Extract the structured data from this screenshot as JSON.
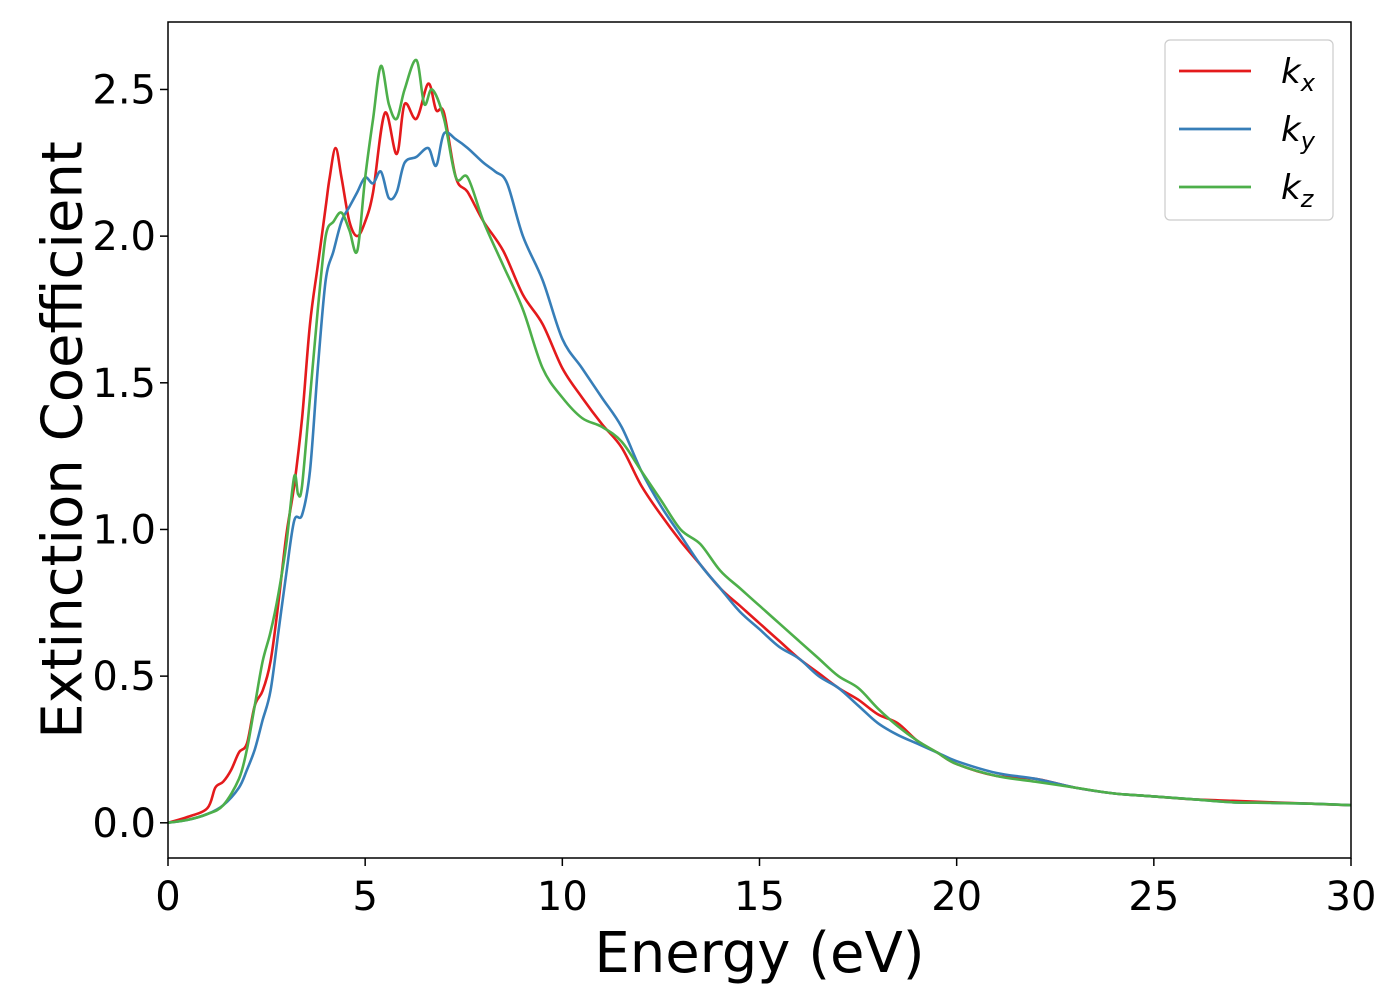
{
  "chart_data": {
    "type": "line",
    "xlabel": "Energy (eV)",
    "ylabel": "Extinction Coefficient",
    "xlim": [
      0,
      30
    ],
    "ylim": [
      -0.12,
      2.73
    ],
    "xticks": [
      "0",
      "5",
      "10",
      "15",
      "20",
      "25",
      "30"
    ],
    "yticks": [
      "0.0",
      "0.5",
      "1.0",
      "1.5",
      "2.0",
      "2.5"
    ],
    "grid": false,
    "legend_position": "top-right",
    "series": [
      {
        "name": "k",
        "subscript": "x",
        "color": "#e41a1c",
        "x": [
          0,
          0.5,
          1.0,
          1.2,
          1.4,
          1.6,
          1.8,
          2.0,
          2.2,
          2.4,
          2.6,
          2.8,
          3.0,
          3.2,
          3.4,
          3.6,
          3.8,
          4.0,
          4.1,
          4.25,
          4.4,
          4.6,
          4.8,
          5.0,
          5.2,
          5.5,
          5.8,
          6.0,
          6.3,
          6.6,
          6.8,
          7.0,
          7.3,
          7.6,
          8.0,
          8.5,
          9.0,
          9.5,
          10.0,
          10.5,
          11.0,
          11.5,
          12.0,
          12.5,
          13.0,
          13.5,
          14.0,
          14.5,
          15.0,
          15.5,
          16.0,
          16.5,
          17.0,
          17.5,
          18.0,
          18.5,
          19.0,
          19.5,
          20.0,
          21.0,
          22.0,
          23.0,
          24.0,
          25.0,
          26.0,
          27.0,
          28.0,
          29.0,
          30.0
        ],
        "y": [
          0.0,
          0.02,
          0.05,
          0.12,
          0.14,
          0.18,
          0.24,
          0.27,
          0.4,
          0.45,
          0.55,
          0.75,
          0.98,
          1.15,
          1.38,
          1.7,
          1.9,
          2.1,
          2.2,
          2.3,
          2.2,
          2.05,
          2.0,
          2.05,
          2.15,
          2.42,
          2.28,
          2.45,
          2.4,
          2.52,
          2.43,
          2.42,
          2.2,
          2.15,
          2.05,
          1.95,
          1.8,
          1.7,
          1.55,
          1.45,
          1.36,
          1.28,
          1.15,
          1.05,
          0.96,
          0.88,
          0.8,
          0.74,
          0.68,
          0.62,
          0.56,
          0.51,
          0.46,
          0.42,
          0.37,
          0.34,
          0.28,
          0.24,
          0.2,
          0.16,
          0.15,
          0.12,
          0.1,
          0.09,
          0.08,
          0.075,
          0.07,
          0.065,
          0.06
        ]
      },
      {
        "name": "k",
        "subscript": "y",
        "color": "#377eb8",
        "x": [
          0,
          0.5,
          1.0,
          1.4,
          1.8,
          2.0,
          2.2,
          2.4,
          2.6,
          2.8,
          3.0,
          3.2,
          3.4,
          3.6,
          3.8,
          4.0,
          4.2,
          4.4,
          4.6,
          4.8,
          5.0,
          5.2,
          5.4,
          5.6,
          5.8,
          6.0,
          6.3,
          6.6,
          6.8,
          7.0,
          7.3,
          7.6,
          8.0,
          8.3,
          8.6,
          9.0,
          9.5,
          10.0,
          10.5,
          11.0,
          11.5,
          12.0,
          12.5,
          13.0,
          13.5,
          14.0,
          14.5,
          15.0,
          15.5,
          16.0,
          16.5,
          17.0,
          17.5,
          18.0,
          18.5,
          19.0,
          19.5,
          20.0,
          21.0,
          22.0,
          23.0,
          24.0,
          25.0,
          26.0,
          27.0,
          28.0,
          29.0,
          30.0
        ],
        "y": [
          0.0,
          0.01,
          0.03,
          0.06,
          0.12,
          0.18,
          0.25,
          0.35,
          0.45,
          0.65,
          0.85,
          1.03,
          1.05,
          1.2,
          1.55,
          1.85,
          1.95,
          2.05,
          2.1,
          2.15,
          2.2,
          2.18,
          2.22,
          2.13,
          2.15,
          2.25,
          2.27,
          2.3,
          2.24,
          2.35,
          2.33,
          2.3,
          2.25,
          2.22,
          2.18,
          2.0,
          1.85,
          1.65,
          1.55,
          1.45,
          1.35,
          1.2,
          1.08,
          0.98,
          0.88,
          0.8,
          0.72,
          0.66,
          0.6,
          0.56,
          0.5,
          0.46,
          0.4,
          0.34,
          0.3,
          0.27,
          0.24,
          0.21,
          0.17,
          0.15,
          0.12,
          0.1,
          0.09,
          0.08,
          0.07,
          0.068,
          0.065,
          0.06
        ]
      },
      {
        "name": "k",
        "subscript": "z",
        "color": "#4daf4a",
        "x": [
          0,
          0.5,
          1.0,
          1.4,
          1.8,
          2.0,
          2.2,
          2.4,
          2.6,
          2.8,
          3.0,
          3.2,
          3.3,
          3.4,
          3.6,
          3.8,
          4.0,
          4.2,
          4.4,
          4.6,
          4.8,
          5.0,
          5.2,
          5.4,
          5.6,
          5.8,
          6.0,
          6.3,
          6.5,
          6.7,
          7.0,
          7.3,
          7.6,
          8.0,
          8.5,
          9.0,
          9.5,
          10.0,
          10.5,
          11.0,
          11.5,
          12.0,
          12.5,
          13.0,
          13.5,
          14.0,
          14.5,
          15.0,
          15.5,
          16.0,
          16.5,
          17.0,
          17.5,
          18.0,
          18.5,
          19.0,
          19.5,
          20.0,
          21.0,
          22.0,
          23.0,
          24.0,
          25.0,
          26.0,
          27.0,
          28.0,
          29.0,
          30.0
        ],
        "y": [
          0.0,
          0.01,
          0.03,
          0.06,
          0.15,
          0.25,
          0.4,
          0.55,
          0.65,
          0.78,
          0.95,
          1.18,
          1.12,
          1.15,
          1.45,
          1.75,
          2.0,
          2.05,
          2.08,
          2.02,
          1.95,
          2.2,
          2.4,
          2.58,
          2.45,
          2.4,
          2.5,
          2.6,
          2.45,
          2.5,
          2.4,
          2.2,
          2.2,
          2.05,
          1.9,
          1.75,
          1.55,
          1.45,
          1.38,
          1.35,
          1.3,
          1.2,
          1.1,
          1.0,
          0.95,
          0.86,
          0.8,
          0.74,
          0.68,
          0.62,
          0.56,
          0.5,
          0.46,
          0.39,
          0.33,
          0.28,
          0.24,
          0.2,
          0.16,
          0.14,
          0.12,
          0.1,
          0.09,
          0.08,
          0.07,
          0.068,
          0.065,
          0.06
        ]
      }
    ]
  }
}
